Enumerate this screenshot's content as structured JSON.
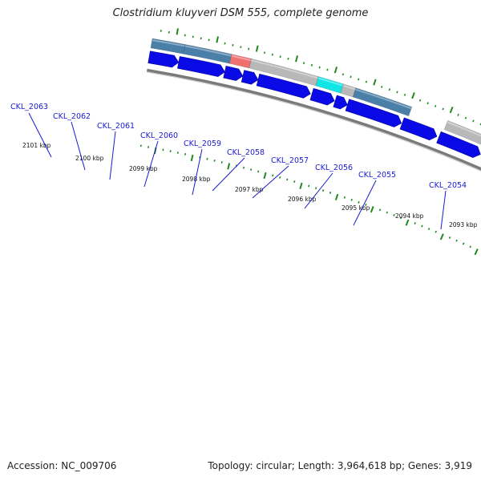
{
  "title": "Clostridium kluyveri DSM 555, complete genome",
  "footer": {
    "accession": "Accession: NC_009706",
    "summary": "Topology: circular; Length: 3,964,618 bp; Genes: 3,919"
  },
  "colors": {
    "forward_cds": "#0a0ae6",
    "feature_steel": "#4a7fa8",
    "feature_gray": "#b8b8b8",
    "feature_dark": "#555555",
    "feature_red": "#f07070",
    "feature_cyan": "#10e6e6",
    "backbone": "#7a7a7a",
    "tick": "#1e8a1e",
    "label_link": "#1a1ad0"
  },
  "genes": [
    {
      "label": "CKL_2063"
    },
    {
      "label": "CKL_2062"
    },
    {
      "label": "CKL_2061"
    },
    {
      "label": "CKL_2060"
    },
    {
      "label": "CKL_2059"
    },
    {
      "label": "CKL_2058"
    },
    {
      "label": "CKL_2057"
    },
    {
      "label": "CKL_2056"
    },
    {
      "label": "CKL_2055"
    },
    {
      "label": "CKL_2054"
    }
  ],
  "kbp_ticks": [
    {
      "label": "2101 kbp"
    },
    {
      "label": "2100 kbp"
    },
    {
      "label": "2099 kbp"
    },
    {
      "label": "2098 kbp"
    },
    {
      "label": "2097 kbp"
    },
    {
      "label": "2096 kbp"
    },
    {
      "label": "2095 kbp"
    },
    {
      "label": "2094 kbp"
    },
    {
      "label": "2093 kbp"
    }
  ]
}
